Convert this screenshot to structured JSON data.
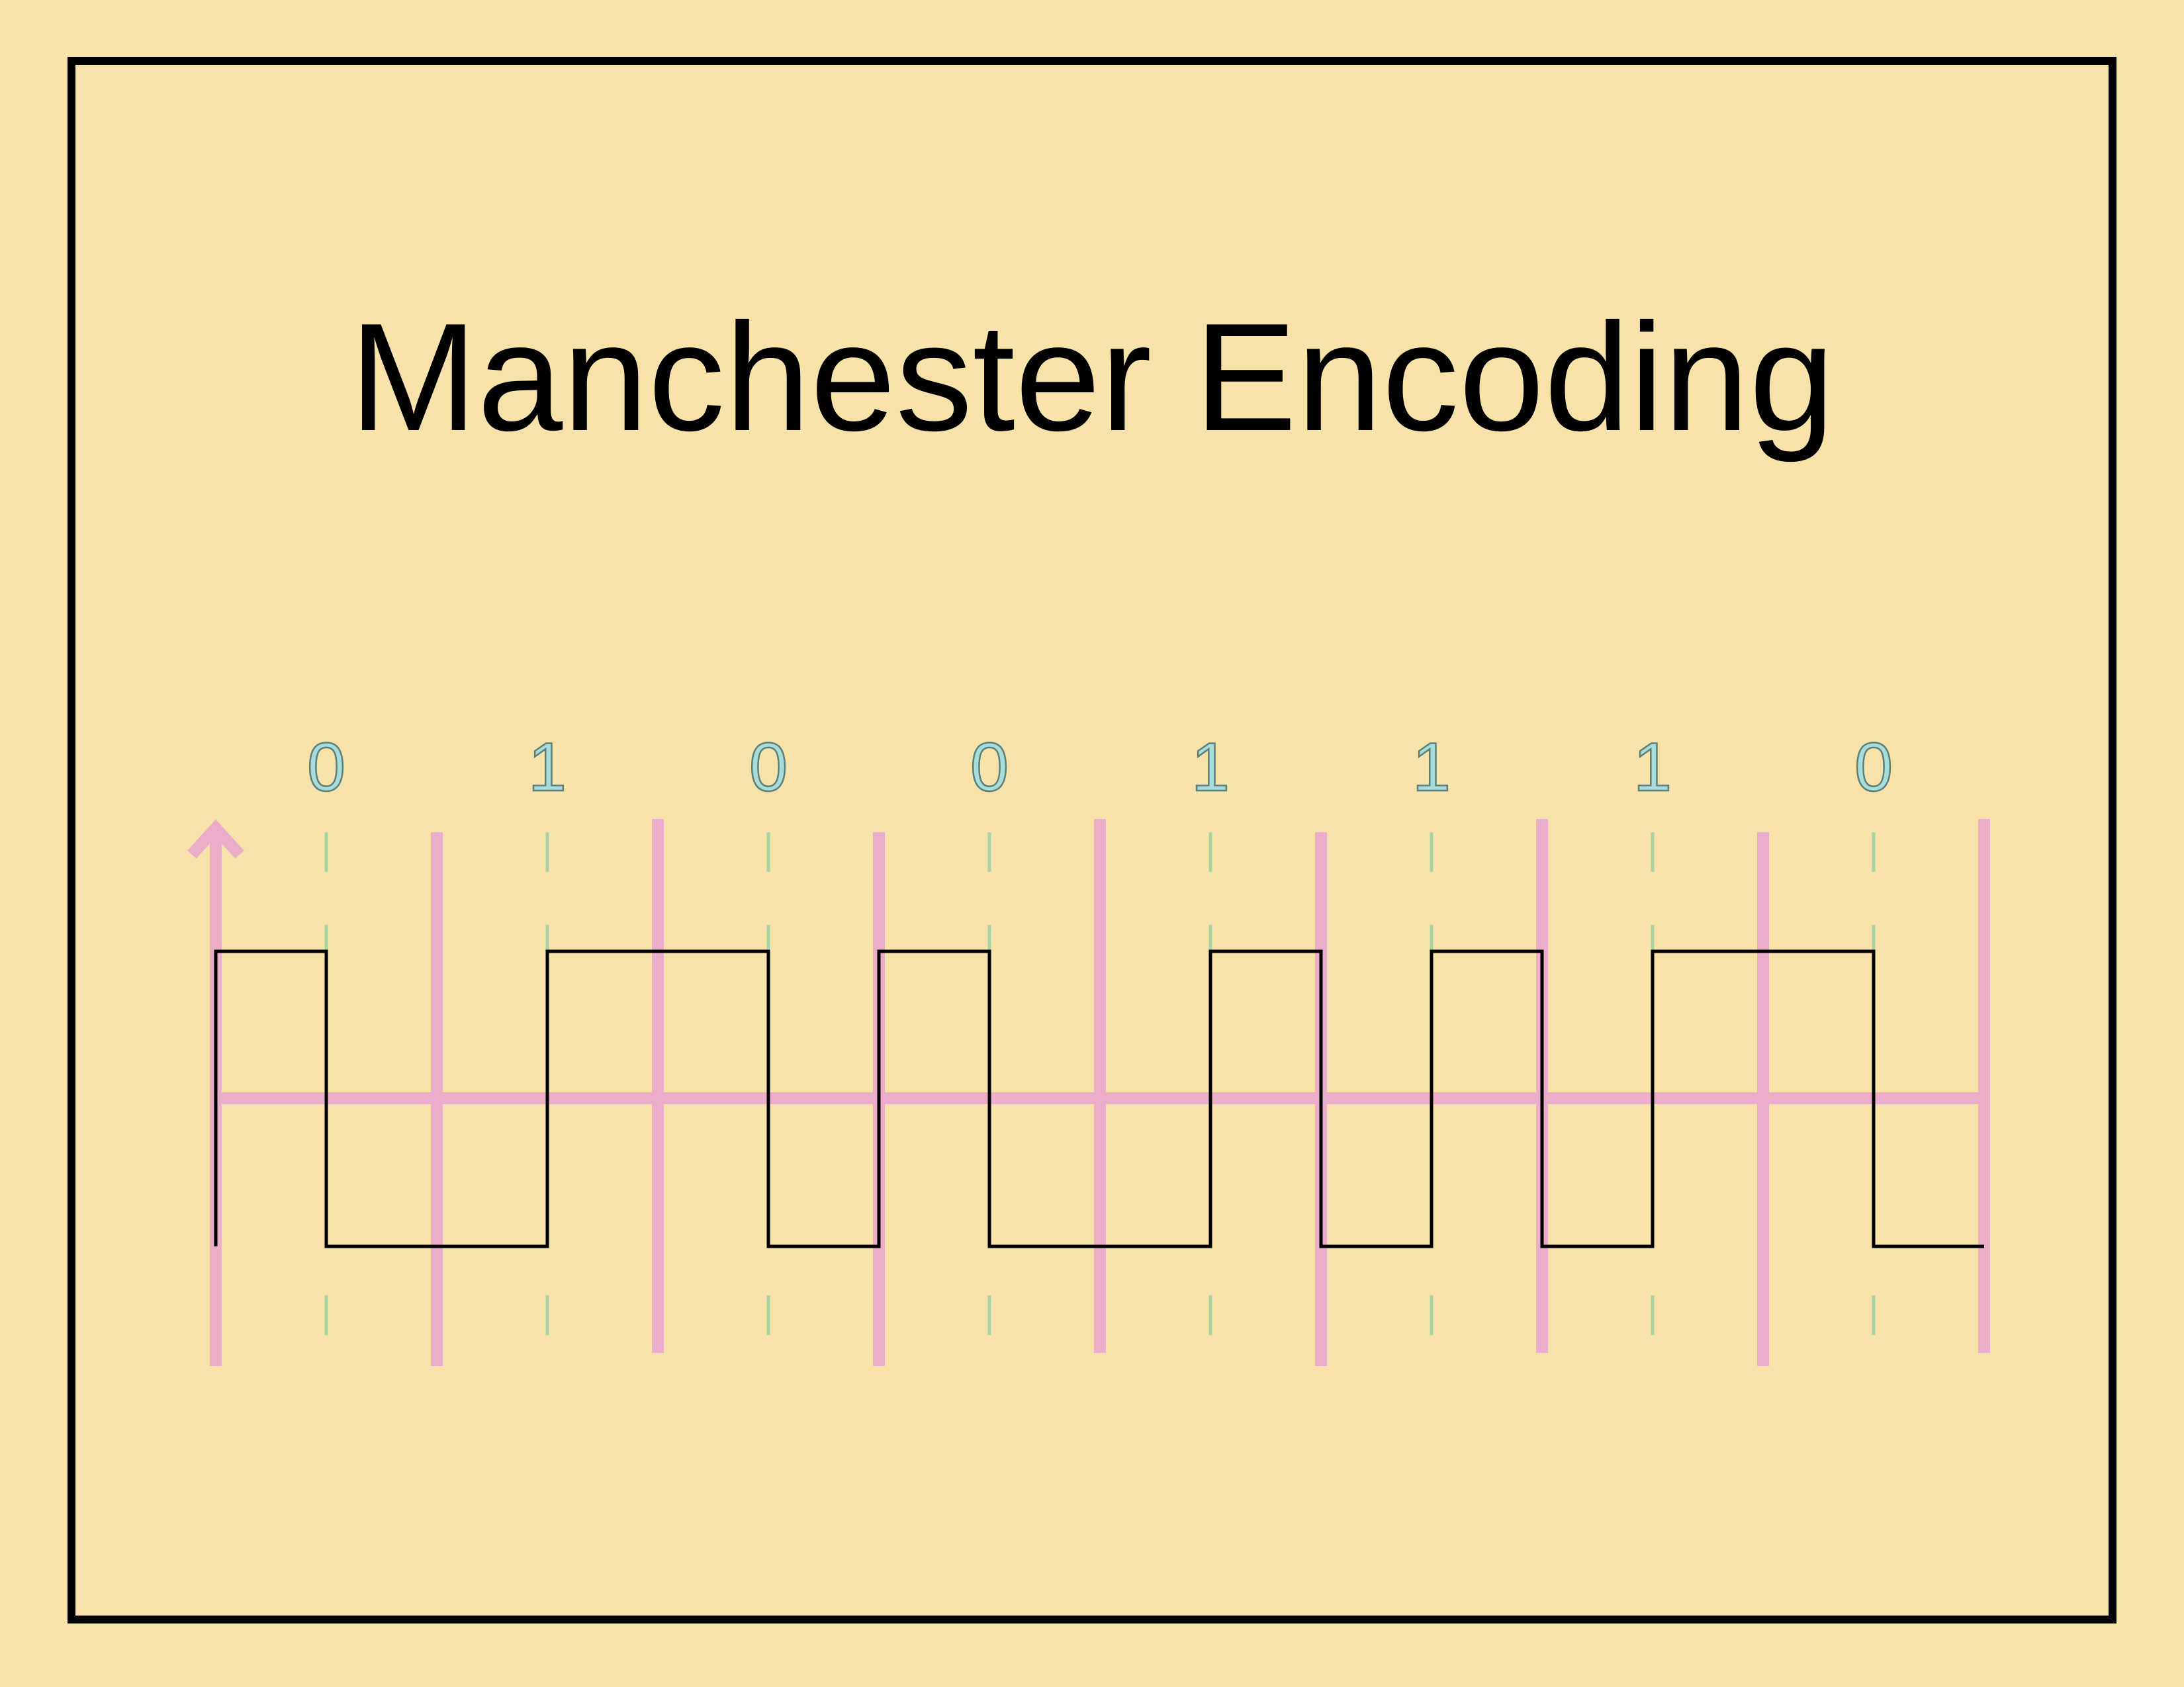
{
  "title": "Manchester Encoding",
  "bits": [
    "0",
    "1",
    "0",
    "0",
    "1",
    "1",
    "1",
    "0"
  ],
  "colors": {
    "background": "#f7e2a9",
    "frame": "#000000",
    "axis": "#ebadc9",
    "mid_marker": "#a8d5a3",
    "bit_label_fill": "#a8dcd8",
    "bit_label_stroke": "#5a7f7d",
    "signal": "#000000"
  }
}
